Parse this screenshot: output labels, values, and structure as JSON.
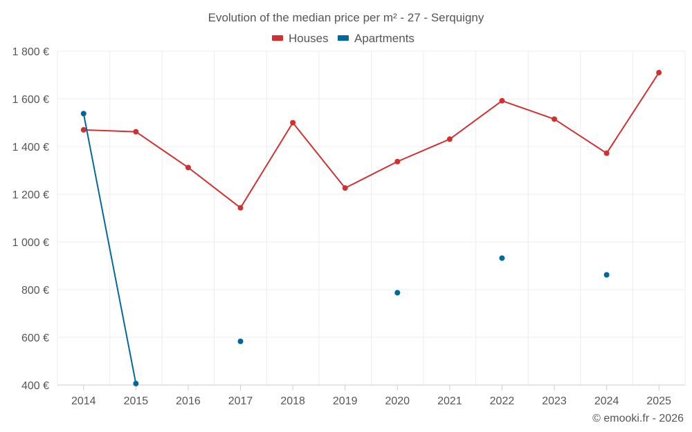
{
  "chart_data": {
    "type": "line",
    "title": "Evolution of the median price per m² - 27 - Serquigny",
    "xlabel": "",
    "ylabel": "",
    "x": [
      "2014",
      "2015",
      "2016",
      "2017",
      "2018",
      "2019",
      "2020",
      "2021",
      "2022",
      "2023",
      "2024",
      "2025"
    ],
    "ylim": [
      400,
      1800
    ],
    "yticks": [
      400,
      600,
      800,
      1000,
      1200,
      1400,
      1600,
      1800
    ],
    "ytick_labels": [
      "400 €",
      "600 €",
      "800 €",
      "1 000 €",
      "1 200 €",
      "1 400 €",
      "1 600 €",
      "1 800 €"
    ],
    "grid": true,
    "legend_position": "top-center",
    "series": [
      {
        "name": "Houses",
        "color": "#d32f2f",
        "values": [
          1470,
          1462,
          1312,
          1143,
          1500,
          1226,
          1337,
          1431,
          1592,
          1515,
          1372,
          1710
        ]
      },
      {
        "name": "Apartments",
        "color": "#01689b",
        "values": [
          1538,
          406,
          null,
          583,
          null,
          null,
          787,
          null,
          932,
          null,
          862,
          null
        ]
      }
    ],
    "credit": "© emooki.fr - 2026"
  }
}
